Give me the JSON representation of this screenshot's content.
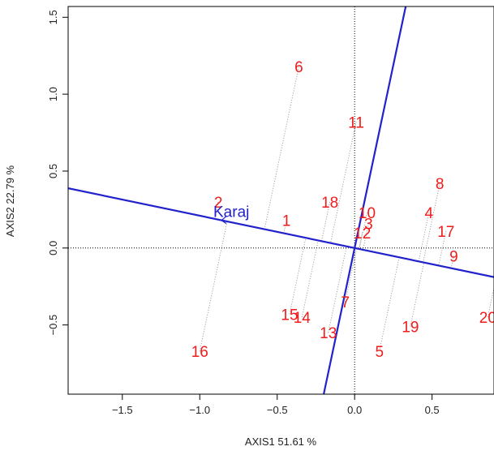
{
  "colors": {
    "points": "#ee1c1c",
    "environment": "#2222cc",
    "projection": "#9a9a9a",
    "reference_lines": "#000000"
  },
  "chart_data": {
    "type": "scatter",
    "title": "",
    "xlabel": "AXIS1 51.61 %",
    "ylabel": "AXIS2 22.79 %",
    "xlim": [
      -1.85,
      0.9
    ],
    "ylim": [
      -0.95,
      1.57
    ],
    "xticks": [
      -1.5,
      -1.0,
      -0.5,
      0.0,
      0.5
    ],
    "xtick_labels": [
      "−1.5",
      "−1.0",
      "−0.5",
      "0.0",
      "0.5"
    ],
    "yticks": [
      -0.5,
      0.0,
      0.5,
      1.0,
      1.5
    ],
    "ytick_labels": [
      "−0.5",
      "0.0",
      "0.5",
      "1.0",
      "1.5"
    ],
    "grid": false,
    "reference_lines": [
      {
        "axis": "x",
        "value": 0
      },
      {
        "axis": "y",
        "value": 0
      }
    ],
    "environment": {
      "name": "Karaj",
      "x": -0.86,
      "y": 0.18,
      "axis_line": {
        "slope": -0.21
      },
      "perpendicular_line": {
        "slope": 4.76
      }
    },
    "series": [
      {
        "name": "",
        "points": [
          {
            "label": "1",
            "x": -0.44,
            "y": 0.18
          },
          {
            "label": "2",
            "x": -0.88,
            "y": 0.3
          },
          {
            "label": "3",
            "x": 0.09,
            "y": 0.16
          },
          {
            "label": "4",
            "x": 0.48,
            "y": 0.23
          },
          {
            "label": "5",
            "x": 0.16,
            "y": -0.67
          },
          {
            "label": "6",
            "x": -0.36,
            "y": 1.18
          },
          {
            "label": "7",
            "x": -0.06,
            "y": -0.35
          },
          {
            "label": "8",
            "x": 0.55,
            "y": 0.42
          },
          {
            "label": "9",
            "x": 0.64,
            "y": -0.05
          },
          {
            "label": "10",
            "x": 0.08,
            "y": 0.23
          },
          {
            "label": "11",
            "x": 0.01,
            "y": 0.82
          },
          {
            "label": "12",
            "x": 0.05,
            "y": 0.1
          },
          {
            "label": "13",
            "x": -0.17,
            "y": -0.55
          },
          {
            "label": "14",
            "x": -0.34,
            "y": -0.45
          },
          {
            "label": "15",
            "x": -0.42,
            "y": -0.43
          },
          {
            "label": "16",
            "x": -1.0,
            "y": -0.67
          },
          {
            "label": "17",
            "x": 0.59,
            "y": 0.11
          },
          {
            "label": "18",
            "x": -0.16,
            "y": 0.3
          },
          {
            "label": "19",
            "x": 0.36,
            "y": -0.51
          },
          {
            "label": "20",
            "x": 0.86,
            "y": -0.45
          }
        ]
      }
    ]
  }
}
